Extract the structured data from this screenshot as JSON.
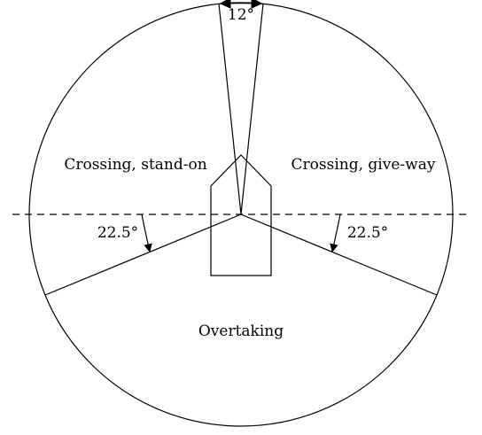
{
  "diagram": {
    "labels": {
      "sector_angle": "12°",
      "crossing_stand_on": "Crossing, stand-on",
      "crossing_give_way": "Crossing, give-way",
      "overtaking": "Overtaking",
      "left_angle": "22.5°",
      "right_angle": "22.5°"
    },
    "colors": {
      "stroke": "#000000",
      "background": "#ffffff"
    }
  }
}
